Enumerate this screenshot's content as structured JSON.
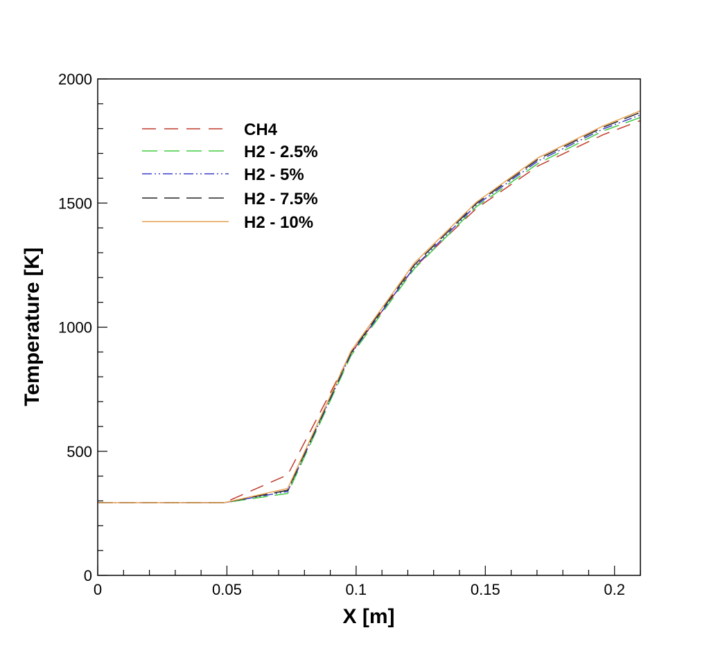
{
  "chart_data": {
    "type": "line",
    "title": "",
    "xlabel": "X [m]",
    "ylabel": "Temperature [K]",
    "xlim": [
      0,
      0.21
    ],
    "ylim": [
      0,
      2000
    ],
    "xticks": [
      0,
      0.05,
      0.1,
      0.15,
      0.2
    ],
    "xtick_labels": [
      "0",
      "0.05",
      "0.1",
      "0.15",
      "0.2"
    ],
    "yticks": [
      0,
      500,
      1000,
      1500,
      2000
    ],
    "ytick_labels": [
      "0",
      "500",
      "1000",
      "1500",
      "2000"
    ],
    "grid": false,
    "legend_position": "top-left",
    "x": [
      0,
      0.049,
      0.0735,
      0.098,
      0.1225,
      0.1465,
      0.1705,
      0.1955,
      0.21
    ],
    "series": [
      {
        "name": "CH4",
        "color": "#c0392b",
        "dash": "20 12",
        "values": [
          293,
          293,
          405,
          895,
          1240,
          1478,
          1650,
          1775,
          1832
        ]
      },
      {
        "name": "H2 - 2.5%",
        "color": "#3ecb3e",
        "dash": "22 10",
        "values": [
          293,
          293,
          330,
          885,
          1235,
          1485,
          1660,
          1790,
          1845
        ]
      },
      {
        "name": "H2 - 5%",
        "color": "#3a3ac8",
        "dash": "14 4 2 4 2 4",
        "values": [
          293,
          293,
          338,
          892,
          1242,
          1492,
          1670,
          1798,
          1855
        ]
      },
      {
        "name": "H2 - 7.5%",
        "color": "#222222",
        "dash": "22 10",
        "values": [
          293,
          293,
          343,
          897,
          1250,
          1498,
          1677,
          1805,
          1865
        ]
      },
      {
        "name": "H2 - 10%",
        "color": "#e8a050",
        "dash": "",
        "values": [
          293,
          293,
          350,
          903,
          1258,
          1503,
          1683,
          1810,
          1872
        ]
      }
    ]
  }
}
